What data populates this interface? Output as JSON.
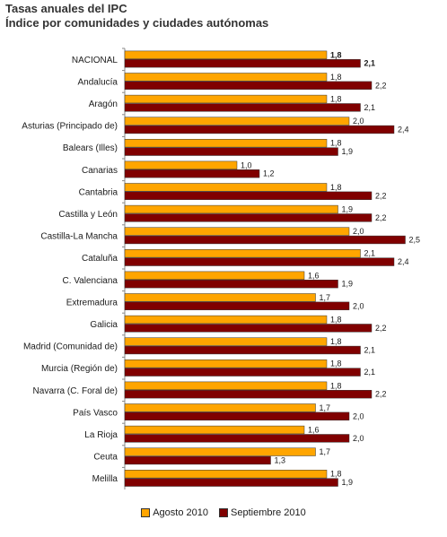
{
  "chart_data": {
    "type": "bar",
    "orientation": "horizontal",
    "title": "Tasas anuales del IPC",
    "subtitle": "Índice por comunidades y ciudades autónomas",
    "categories": [
      "NACIONAL",
      "Andalucía",
      "Aragón",
      "Asturias (Principado de)",
      "Balears (Illes)",
      "Canarias",
      "Cantabria",
      "Castilla y León",
      "Castilla-La Mancha",
      "Cataluña",
      "C. Valenciana",
      "Extremadura",
      "Galicia",
      "Madrid (Comunidad de)",
      "Murcia (Región de)",
      "Navarra (C. Foral de)",
      "País Vasco",
      "La Rioja",
      "Ceuta",
      "Melilla"
    ],
    "series": [
      {
        "name": "Agosto 2010",
        "color": "#ffa500",
        "values": [
          1.8,
          1.8,
          1.8,
          2.0,
          1.8,
          1.0,
          1.8,
          1.9,
          2.0,
          2.1,
          1.6,
          1.7,
          1.8,
          1.8,
          1.8,
          1.8,
          1.7,
          1.6,
          1.7,
          1.8
        ],
        "labels": [
          "1,8",
          "1,8",
          "1,8",
          "2,0",
          "1,8",
          "1,0",
          "1,8",
          "1,9",
          "2,0",
          "2,1",
          "1,6",
          "1,7",
          "1,8",
          "1,8",
          "1,8",
          "1,8",
          "1,7",
          "1,6",
          "1,7",
          "1,8"
        ]
      },
      {
        "name": "Septiembre 2010",
        "color": "#800000",
        "values": [
          2.1,
          2.2,
          2.1,
          2.4,
          1.9,
          1.2,
          2.2,
          2.2,
          2.5,
          2.4,
          1.9,
          2.0,
          2.2,
          2.1,
          2.1,
          2.2,
          2.0,
          2.0,
          1.3,
          1.9
        ],
        "labels": [
          "2,1",
          "2,2",
          "2,1",
          "2,4",
          "1,9",
          "1,2",
          "2,2",
          "2,2",
          "2,5",
          "2,4",
          "1,9",
          "2,0",
          "2,2",
          "2,1",
          "2,1",
          "2,2",
          "2,0",
          "2,0",
          "1,3",
          "1,9"
        ]
      }
    ],
    "bold_category": "NACIONAL",
    "xlim": [
      0,
      2.8
    ],
    "grid": false,
    "legend_position": "bottom"
  }
}
